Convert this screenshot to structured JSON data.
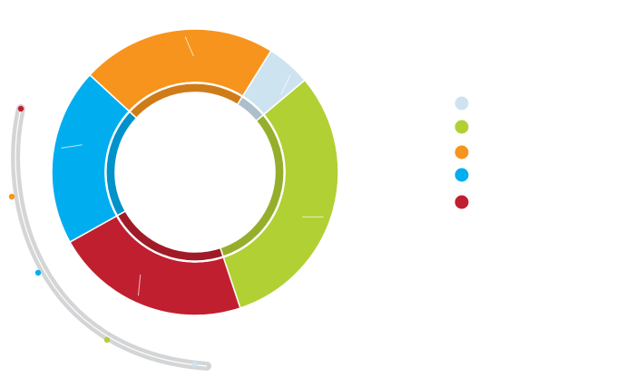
{
  "chart_data": {
    "type": "pie",
    "categories": [
      null,
      null,
      null,
      null,
      null
    ],
    "values": [
      5,
      31,
      22,
      20,
      22
    ],
    "colors": [
      "#cde3f0",
      "#b1d034",
      "#f7941d",
      "#00aeef",
      "#c01f2f"
    ]
  }
}
